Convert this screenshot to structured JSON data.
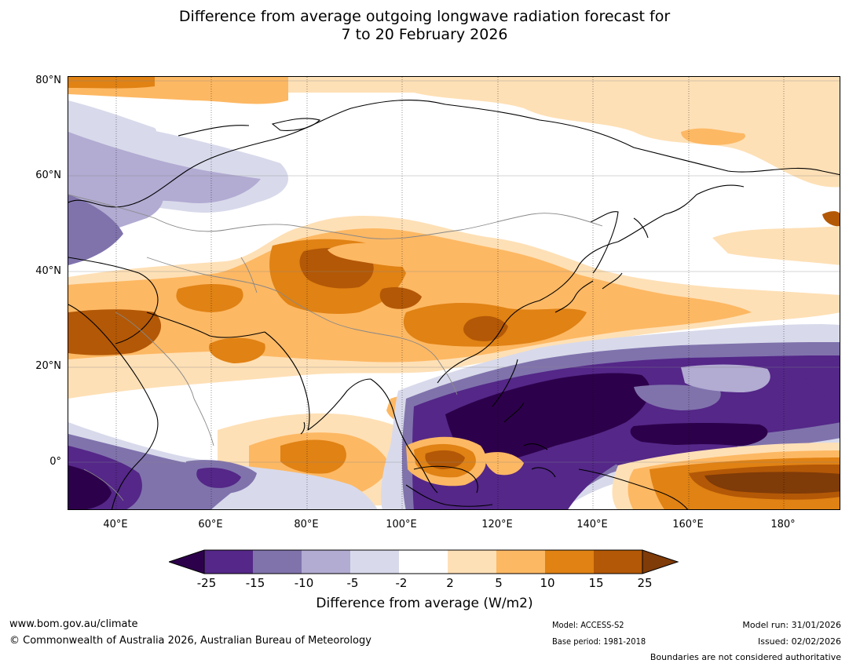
{
  "chart_data": {
    "type": "heatmap",
    "title": [
      "Difference from average outgoing longwave radiation forecast for",
      "7 to 20 February 2026"
    ],
    "xlabel": "",
    "ylabel": "",
    "x_ticks": [
      "40°E",
      "60°E",
      "80°E",
      "100°E",
      "120°E",
      "140°E",
      "160°E",
      "180°"
    ],
    "y_ticks": [
      "80°N",
      "60°N",
      "40°N",
      "20°N",
      "0°"
    ],
    "xlim": [
      30,
      192
    ],
    "ylim": [
      -10,
      81
    ],
    "grid": true,
    "colorbar": {
      "label": "Difference from average (W/m2)",
      "tick_labels": [
        "-25",
        "-15",
        "-10",
        "-5",
        "-2",
        "2",
        "5",
        "10",
        "15",
        "25"
      ],
      "bins": [
        {
          "range": "< -25",
          "color": "#2d004b"
        },
        {
          "range": "-25 to -15",
          "color": "#542788"
        },
        {
          "range": "-15 to -10",
          "color": "#8073ac"
        },
        {
          "range": "-10 to -5",
          "color": "#b2abd2"
        },
        {
          "range": "-5 to -2",
          "color": "#d8daeb"
        },
        {
          "range": "-2 to 2",
          "color": "#ffffff"
        },
        {
          "range": "2 to 5",
          "color": "#fee0b6"
        },
        {
          "range": "5 to 10",
          "color": "#fdb863"
        },
        {
          "range": "10 to 15",
          "color": "#e08214"
        },
        {
          "range": "15 to 25",
          "color": "#b35806"
        },
        {
          "range": "> 25",
          "color": "#7f3b08"
        }
      ]
    }
  },
  "footer": {
    "website": "www.bom.gov.au/climate",
    "copyright": "© Commonwealth of Australia 2026, Australian Bureau of Meteorology",
    "model": "Model: ACCESS-S2",
    "base_period": "Base period: 1981-2018",
    "model_run": "Model run: 31/01/2026",
    "issued": "Issued: 02/02/2026",
    "disclaimer": "Boundaries are not considered authoritative"
  }
}
